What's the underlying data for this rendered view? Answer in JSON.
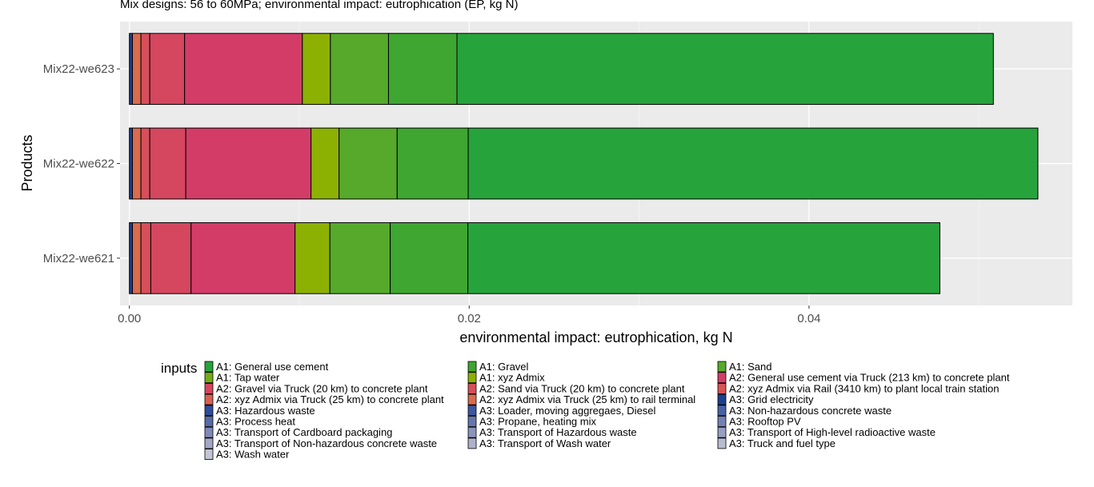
{
  "chart_data": {
    "type": "bar",
    "orientation": "horizontal",
    "stacked": true,
    "title": "Mix designs: 56 to 60MPa; environmental impact: eutrophication (EP, kg N)",
    "xlabel": "environmental impact: eutrophication, kg N",
    "ylabel": "Products",
    "xlim": [
      -0.00055,
      0.0555
    ],
    "x_ticks": [
      0.0,
      0.02,
      0.04
    ],
    "x_tick_labels": [
      "0.00",
      "0.02",
      "0.04"
    ],
    "categories": [
      "Mix22-we623",
      "Mix22-we622",
      "Mix22-we621"
    ],
    "grid": true,
    "legend_position": "bottom",
    "legend_title": "inputs",
    "legend": [
      {
        "label": "A1: General use cement",
        "color": "#27a33c"
      },
      {
        "label": "A1: Gravel",
        "color": "#3fa631"
      },
      {
        "label": "A1: Sand",
        "color": "#56a92b"
      },
      {
        "label": "A1: Tap water",
        "color": "#75ab17"
      },
      {
        "label": "A1: xyz Admix",
        "color": "#8cb102"
      },
      {
        "label": "A2: General use cement via Truck (213 km) to concrete plant",
        "color": "#d43c68"
      },
      {
        "label": "A2: Gravel via Truck (20 km) to concrete plant",
        "color": "#d5465f"
      },
      {
        "label": "A2: Sand via Truck (20 km) to concrete plant",
        "color": "#d64f5a"
      },
      {
        "label": "A2: xyz Admix via Rail (3410 km) to plant local train station",
        "color": "#d85554"
      },
      {
        "label": "A2: xyz Admix via Truck (25 km) to concrete plant",
        "color": "#d95f50"
      },
      {
        "label": "A2: xyz Admix via Truck (25 km) to rail terminal",
        "color": "#db6a4e"
      },
      {
        "label": "A3: Grid electricity",
        "color": "#1d3f8e"
      },
      {
        "label": "A3: Hazardous waste",
        "color": "#2e4c9b"
      },
      {
        "label": "A3: Loader, moving aggregaes, Diesel",
        "color": "#3c58a0"
      },
      {
        "label": "A3: Non-hazardous concrete waste",
        "color": "#4a62a4"
      },
      {
        "label": "A3: Process heat",
        "color": "#566ca8"
      },
      {
        "label": "A3: Propane, heating mix",
        "color": "#6676ae"
      },
      {
        "label": "A3: Rooftop PV",
        "color": "#7481b3"
      },
      {
        "label": "A3: Transport of Cardboard packaging",
        "color": "#7f8ab8"
      },
      {
        "label": "A3: Transport of Hazardous waste",
        "color": "#8b95bd"
      },
      {
        "label": "A3: Transport of High-level radioactive waste",
        "color": "#979fc2"
      },
      {
        "label": "A3: Transport of Non-hazardous concrete waste",
        "color": "#a2a8c6"
      },
      {
        "label": "A3: Transport of Wash water",
        "color": "#adb2cb"
      },
      {
        "label": "A3: Truck and fuel type",
        "color": "#b7bccf"
      },
      {
        "label": "A3: Wash water",
        "color": "#c1c5d4"
      }
    ],
    "series": [
      {
        "name": "A3: Grid electricity",
        "values": [
          0.00018,
          0.00018,
          0.00018
        ]
      },
      {
        "name": "A2: xyz Admix via Truck (25 km) to rail terminal",
        "values": [
          0.0005,
          0.0005,
          0.0005
        ]
      },
      {
        "name": "A2: Sand via Truck (20 km) to concrete plant",
        "values": [
          0.00052,
          0.00052,
          0.00058
        ]
      },
      {
        "name": "A2: Gravel via Truck (20 km) to concrete plant",
        "values": [
          0.00205,
          0.00212,
          0.00237
        ]
      },
      {
        "name": "A2: General use cement via Truck (213 km) to concrete plant",
        "values": [
          0.00693,
          0.00737,
          0.00612
        ]
      },
      {
        "name": "A1: xyz Admix",
        "values": [
          0.00165,
          0.00165,
          0.00205
        ]
      },
      {
        "name": "A1: Sand",
        "values": [
          0.00342,
          0.00342,
          0.00355
        ]
      },
      {
        "name": "A1: Gravel",
        "values": [
          0.00403,
          0.00418,
          0.00457
        ]
      },
      {
        "name": "A1: General use cement",
        "values": [
          0.03157,
          0.03353,
          0.02778
        ]
      }
    ]
  }
}
